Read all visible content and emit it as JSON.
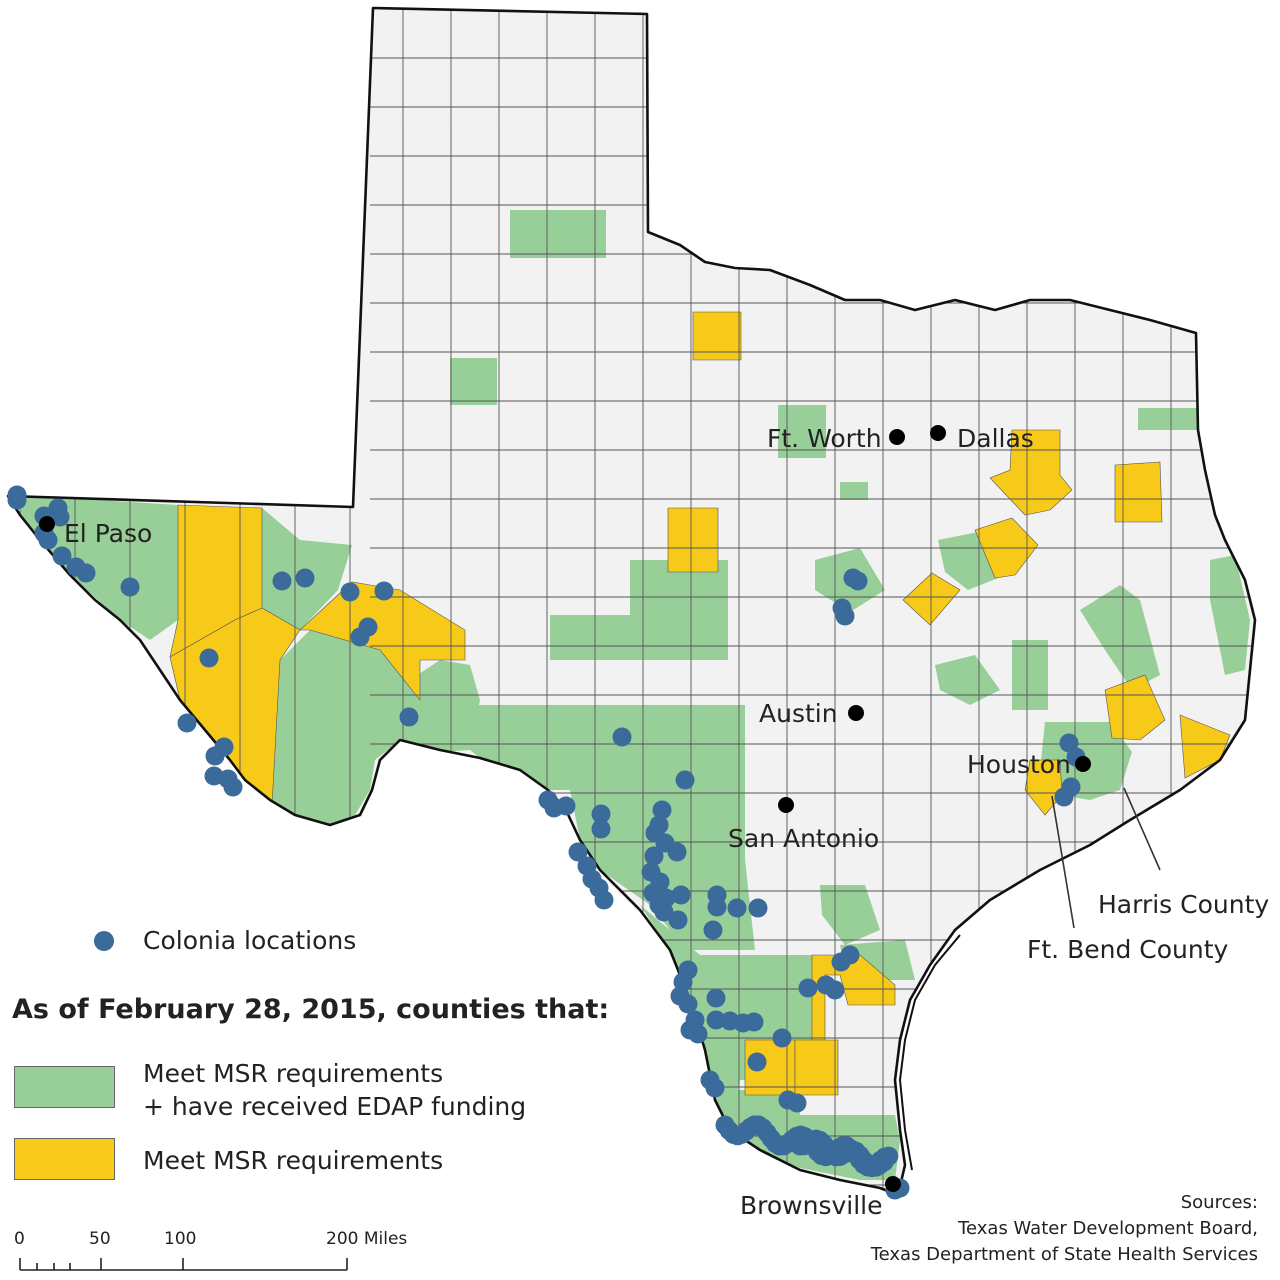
{
  "cities": [
    {
      "name": "El Paso"
    },
    {
      "name": "Ft. Worth"
    },
    {
      "name": "Dallas"
    },
    {
      "name": "Austin"
    },
    {
      "name": "Houston"
    },
    {
      "name": "San Antonio"
    },
    {
      "name": "Brownsville"
    }
  ],
  "callouts": {
    "harris": "Harris County",
    "ft_bend": "Ft. Bend County"
  },
  "legend": {
    "colonia_label": "Colonia locations",
    "heading": "As of February 28, 2015, counties that:",
    "green_label_line1": "Meet MSR requirements",
    "green_label_line2": "+ have received EDAP funding",
    "yellow_label": "Meet MSR requirements"
  },
  "scale_bar": {
    "ticks": [
      "0",
      "50",
      "100",
      "200 Miles"
    ]
  },
  "sources": {
    "title": "Sources:",
    "line1": "Texas Water Development Board,",
    "line2": "Texas Department of State Health Services"
  },
  "colors": {
    "county_fill": "#f2f2f2",
    "county_border": "#555555",
    "state_border": "#111111",
    "edap_green": "#98cf98",
    "msr_yellow": "#f7c919",
    "colonia_blue": "#3a6b9a",
    "city_dot": "#000000"
  }
}
